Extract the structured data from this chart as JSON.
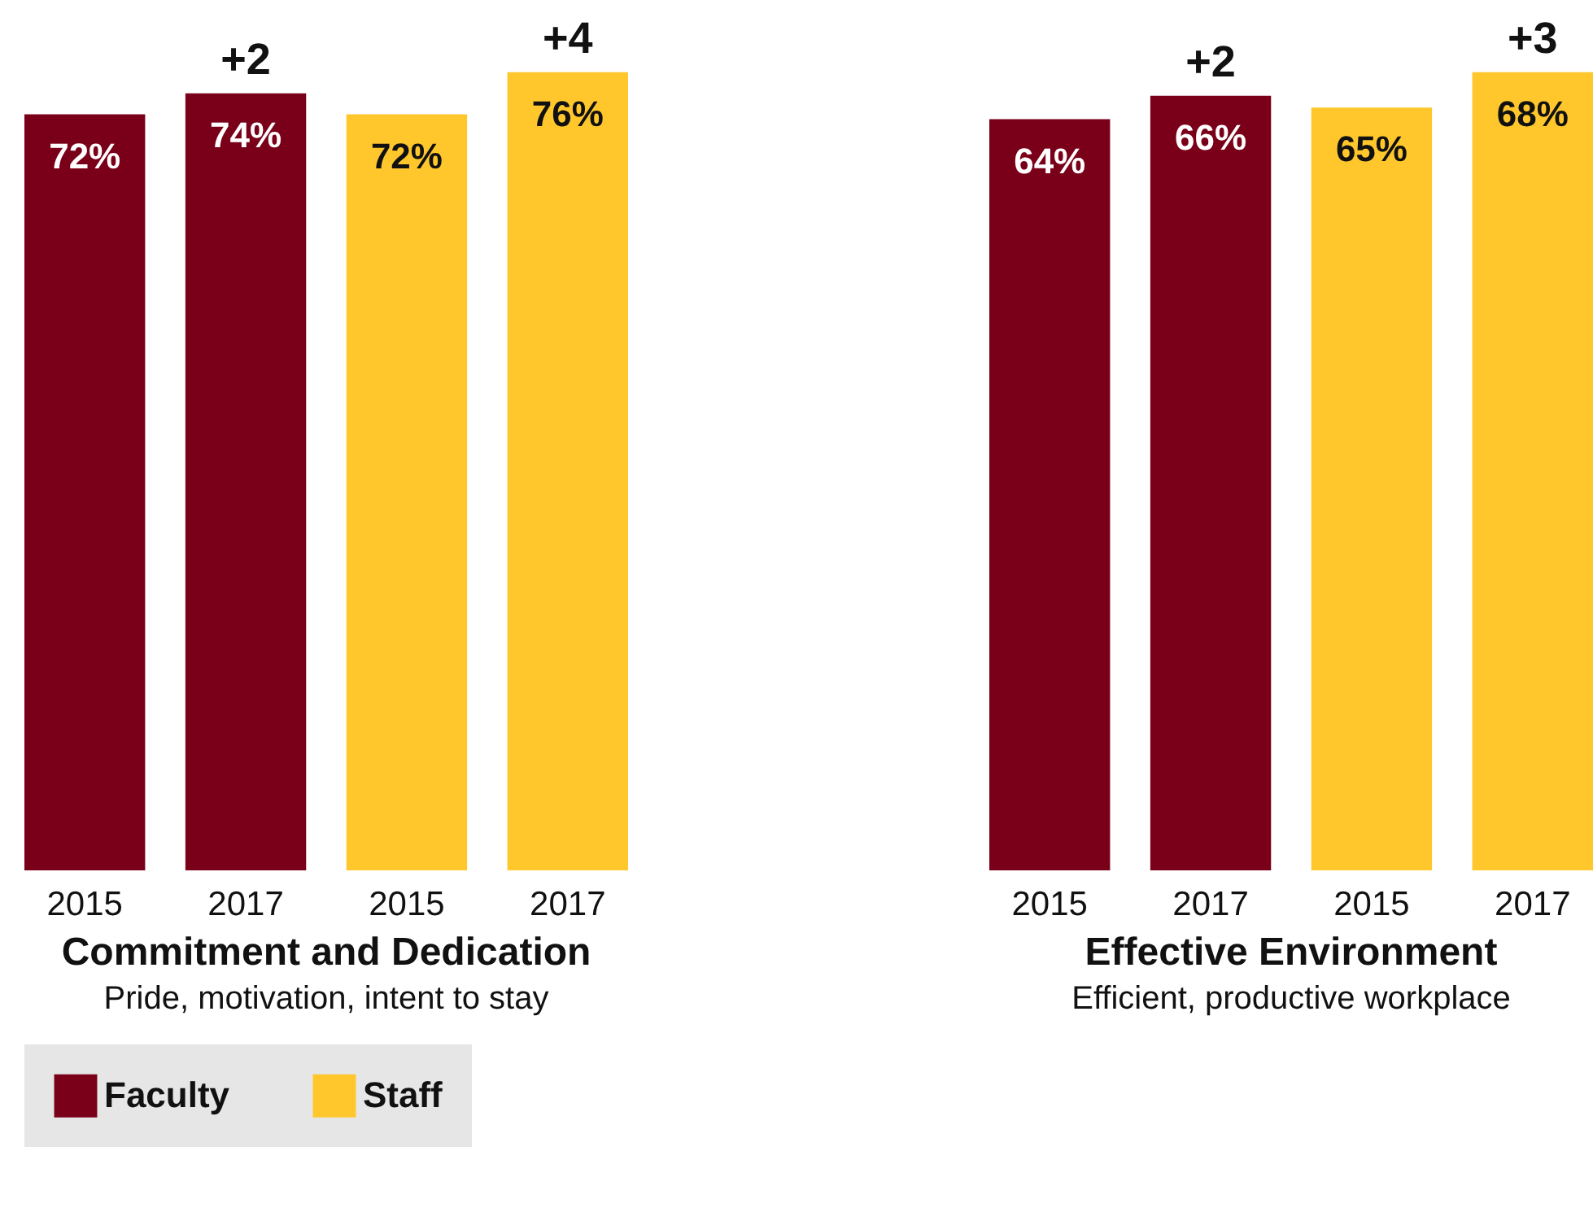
{
  "chart_data": [
    {
      "type": "bar",
      "title": "Commitment and Dedication",
      "subtitle": "Pride, motivation, intent to stay",
      "categories": [
        "2015",
        "2017",
        "2015",
        "2017"
      ],
      "series": [
        {
          "name": "Faculty",
          "color": "#7a0019",
          "values": [
            72,
            74,
            null,
            null
          ],
          "value_labels": [
            "72%",
            "74%",
            null,
            null
          ]
        },
        {
          "name": "Staff",
          "color": "#ffc72c",
          "values": [
            null,
            null,
            72,
            76
          ],
          "value_labels": [
            null,
            null,
            "72%",
            "76%"
          ]
        }
      ],
      "annotations": [
        "+2",
        "+4"
      ],
      "legend": "bottom"
    },
    {
      "type": "bar",
      "title": "Effective Environment",
      "subtitle": "Efficient, productive workplace",
      "categories": [
        "2015",
        "2017",
        "2015",
        "2017"
      ],
      "series": [
        {
          "name": "Faculty",
          "color": "#7a0019",
          "values": [
            64,
            66,
            null,
            null
          ],
          "value_labels": [
            "64%",
            "66%",
            null,
            null
          ]
        },
        {
          "name": "Staff",
          "color": "#ffc72c",
          "values": [
            null,
            null,
            65,
            68
          ],
          "value_labels": [
            null,
            null,
            "65%",
            "68%"
          ]
        }
      ],
      "annotations": [
        "+2",
        "+3"
      ],
      "legend": "bottom"
    }
  ]
}
